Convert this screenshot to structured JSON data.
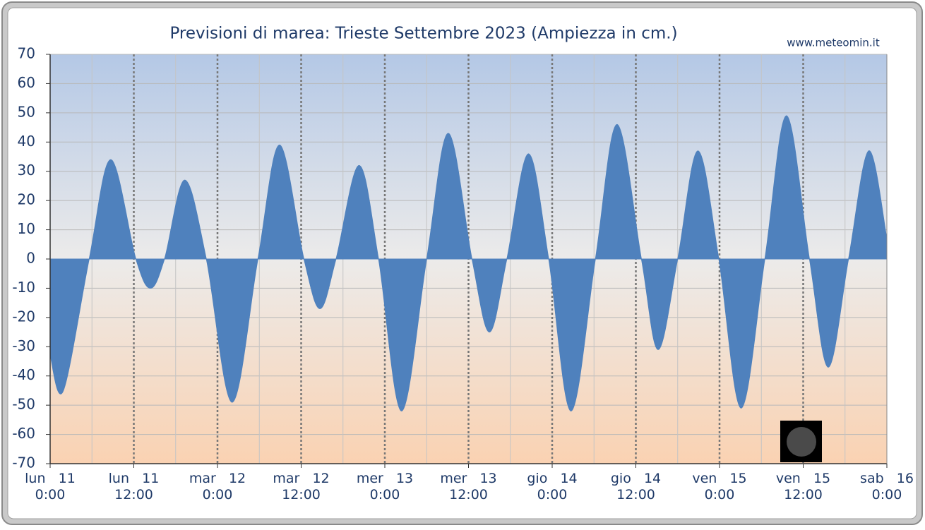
{
  "chart_data": {
    "type": "area",
    "title": "Previsioni di marea: Trieste Settembre 2023 (Ampiezza in cm.)",
    "source": "www.meteomin.it",
    "x": [
      0,
      1.9,
      5.6,
      8.7,
      12.3,
      14.4,
      16.4,
      19.3,
      22.4,
      26.1,
      29.8,
      32.9,
      36.4,
      38.7,
      41.0,
      44.3,
      47.1,
      50.4,
      54.0,
      57.1,
      60.5,
      63.0,
      65.5,
      68.6,
      71.5,
      74.7,
      78.2,
      81.3,
      84.8,
      87.2,
      90.0,
      92.9,
      95.9,
      99.1,
      102.5,
      105.6,
      108.9,
      111.6,
      114.5,
      117.4,
      120
    ],
    "series": [
      {
        "color": "#4f81bd",
        "values": [
          -33,
          -45,
          0,
          34,
          0,
          -10,
          0,
          27,
          0,
          -49,
          0,
          39,
          0,
          -17,
          0,
          32,
          0,
          -52,
          0,
          43,
          0,
          -25,
          0,
          36,
          0,
          -52,
          0,
          46,
          0,
          -31,
          0,
          37,
          0,
          -51,
          0,
          49,
          0,
          -37,
          0,
          37,
          7
        ]
      }
    ],
    "xlim": [
      0,
      120
    ],
    "xticks": [
      {
        "value": 0,
        "label": "lun   11\n0:00"
      },
      {
        "value": 12,
        "label": "lun   11\n12:00"
      },
      {
        "value": 24,
        "label": "mar   12\n0:00"
      },
      {
        "value": 36,
        "label": "mar   12\n12:00"
      },
      {
        "value": 48,
        "label": "mer   13\n0:00"
      },
      {
        "value": 60,
        "label": "mer   13\n12:00"
      },
      {
        "value": 72,
        "label": "gio   14\n0:00"
      },
      {
        "value": 84,
        "label": "gio   14\n12:00"
      },
      {
        "value": 96,
        "label": "ven   15\n0:00"
      },
      {
        "value": 108,
        "label": "ven   15\n12:00"
      },
      {
        "value": 120,
        "label": "sab   16\n0:00"
      }
    ],
    "ylim": [
      -70,
      70
    ],
    "yticks": [
      -70,
      -60,
      -50,
      -40,
      -30,
      -20,
      -10,
      0,
      10,
      20,
      30,
      40,
      50,
      60,
      70
    ],
    "grid": true
  }
}
